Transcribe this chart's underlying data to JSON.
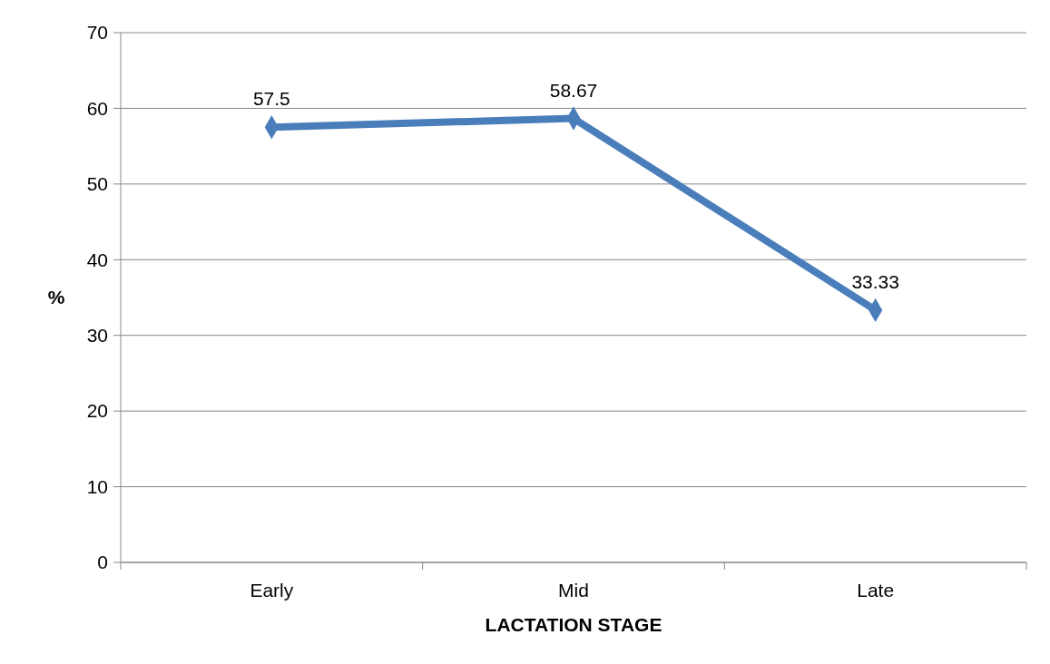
{
  "chart_data": {
    "type": "line",
    "xlabel": "LACTATION STAGE",
    "ylabel": "%",
    "categories": [
      "Early",
      "Mid",
      "Late"
    ],
    "series": [
      {
        "color": "#4a7ebb",
        "values": [
          57.5,
          58.67,
          33.33
        ]
      }
    ],
    "ylim": [
      0,
      70
    ],
    "yticks": [
      0,
      10,
      20,
      30,
      40,
      50,
      60,
      70
    ],
    "grid": "y",
    "marker": "diamond",
    "data_labels": true
  }
}
